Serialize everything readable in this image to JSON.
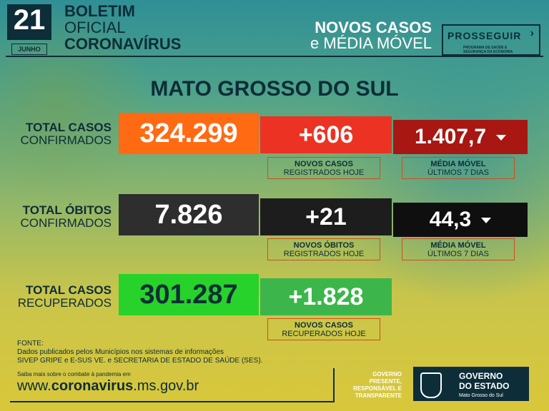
{
  "header": {
    "day": "21",
    "month": "JUNHO",
    "bulletin_line1": "BOLETIM",
    "bulletin_line2": "OFICIAL",
    "bulletin_line3": "CORONAVÍRUS",
    "title_line1": "NOVOS CASOS",
    "title_line2": "e MÉDIA MÓVEL",
    "program_name": "PROSSEGUIR",
    "program_sub": "PROGRAMA DE SAÚDE E SEGURANÇA DA ECONOMIA"
  },
  "region": "MATO GROSSO DO SUL",
  "rows": {
    "cases": {
      "label_bold": "TOTAL CASOS",
      "label_normal": "CONFIRMADOS",
      "total": "324.299",
      "new": "+606",
      "new_sub_bold": "NOVOS CASOS",
      "new_sub_normal": "REGISTRADOS HOJE",
      "avg": "1.407,7",
      "avg_sub_bold": "MÉDIA MÓVEL",
      "avg_sub_normal": "ÚLTIMOS 7 DIAS"
    },
    "deaths": {
      "label_bold": "TOTAL ÓBITOS",
      "label_normal": "CONFIRMADOS",
      "total": "7.826",
      "new": "+21",
      "new_sub_bold": "NOVOS ÓBITOS",
      "new_sub_normal": "REGISTRADOS HOJE",
      "avg": "44,3",
      "avg_sub_bold": "MÉDIA MÓVEL",
      "avg_sub_normal": "ÚLTIMOS 7 DIAS"
    },
    "recovered": {
      "label_bold": "TOTAL CASOS",
      "label_normal": "RECUPERADOS",
      "total": "301.287",
      "new": "+1.828",
      "new_sub_bold": "NOVOS CASOS",
      "new_sub_normal": "RECUPERADOS HOJE"
    }
  },
  "colors": {
    "cases_total": "#ff6a13",
    "cases_new": "#ec3323",
    "cases_avg": "#a81712",
    "deaths_total": "#2e2e2e",
    "deaths_new": "#1d1d1d",
    "deaths_avg": "#0f0f0f",
    "rec_total": "#27d22a",
    "rec_new": "#3cb64a"
  },
  "source": {
    "label": "FONTE:",
    "line1": "Dados publicados pelos Municípios nos sistemas de informações",
    "line2": "SIVEP GRIPE e E-SUS VE. e SECRETARIA DE ESTADO DE SAÚDE (SES)."
  },
  "footer": {
    "more": "Saiba mais sobre o combate à pandemia em",
    "site_prefix": "www.",
    "site_bold": "coronavirus",
    "site_suffix": ".ms.gov.br",
    "tag_line1": "GOVERNO",
    "tag_line2": "PRESENTE,",
    "tag_line3": "RESPONSÁVEL E",
    "tag_line4": "TRANSPARENTE",
    "gov_line1": "GOVERNO",
    "gov_line2": "DO ESTADO",
    "gov_line3": "Mato Grosso do Sul"
  }
}
